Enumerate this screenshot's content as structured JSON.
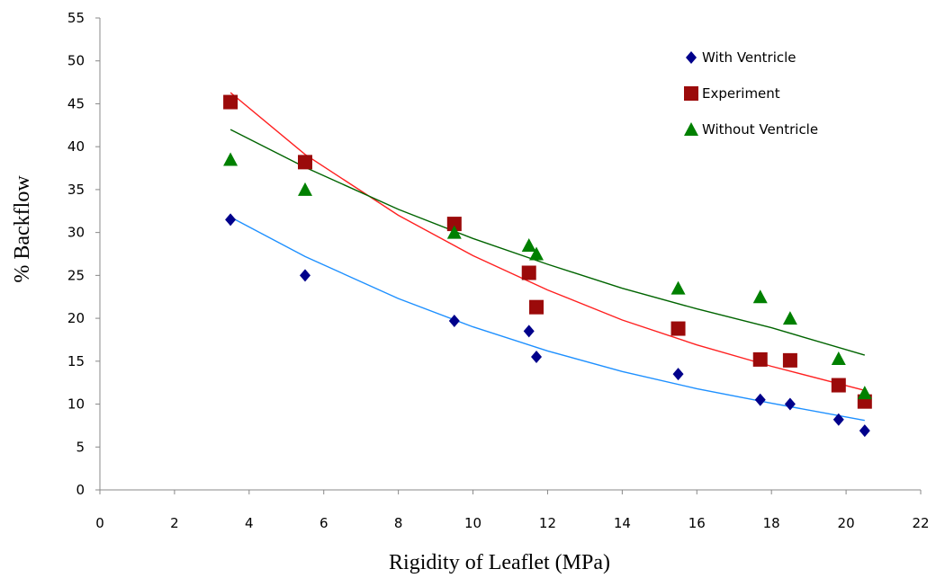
{
  "chart_data": {
    "type": "scatter",
    "title": "",
    "xlabel": "Rigidity of Leaflet (MPa)",
    "ylabel": "% Backflow",
    "xlim": [
      0,
      22
    ],
    "ylim": [
      0,
      55
    ],
    "x_ticks": [
      "0",
      "2",
      "4",
      "6",
      "8",
      "10",
      "12",
      "14",
      "16",
      "18",
      "20",
      "22"
    ],
    "y_ticks": [
      "0",
      "5",
      "10",
      "15",
      "20",
      "25",
      "30",
      "35",
      "40",
      "45",
      "50",
      "55"
    ],
    "grid": false,
    "legend_position": "top-right",
    "series": [
      {
        "name": "With Ventricle",
        "marker": "diamond",
        "color": "#00008B",
        "trend_color": "#1E90FF",
        "points": [
          [
            3.5,
            31.5
          ],
          [
            5.5,
            25.0
          ],
          [
            9.5,
            19.7
          ],
          [
            11.5,
            18.5
          ],
          [
            11.7,
            15.5
          ],
          [
            15.5,
            13.5
          ],
          [
            17.7,
            10.5
          ],
          [
            18.5,
            10.0
          ],
          [
            19.8,
            8.2
          ],
          [
            20.5,
            6.9
          ]
        ],
        "trend": [
          [
            3.5,
            31.8
          ],
          [
            5.5,
            27.2
          ],
          [
            8.0,
            22.3
          ],
          [
            10.0,
            19.0
          ],
          [
            12.0,
            16.2
          ],
          [
            14.0,
            13.8
          ],
          [
            16.0,
            11.8
          ],
          [
            18.0,
            10.1
          ],
          [
            20.5,
            8.1
          ]
        ]
      },
      {
        "name": "Experiment",
        "marker": "square",
        "color": "#9B0A0A",
        "trend_color": "#FF2020",
        "points": [
          [
            3.5,
            45.2
          ],
          [
            5.5,
            38.2
          ],
          [
            9.5,
            31.0
          ],
          [
            11.5,
            25.3
          ],
          [
            11.7,
            21.3
          ],
          [
            15.5,
            18.8
          ],
          [
            17.7,
            15.2
          ],
          [
            18.5,
            15.1
          ],
          [
            19.8,
            12.2
          ],
          [
            20.5,
            10.3
          ]
        ],
        "trend": [
          [
            3.5,
            46.3
          ],
          [
            5.5,
            39.1
          ],
          [
            8.0,
            32.0
          ],
          [
            10.0,
            27.3
          ],
          [
            12.0,
            23.3
          ],
          [
            14.0,
            19.8
          ],
          [
            16.0,
            16.9
          ],
          [
            18.0,
            14.4
          ],
          [
            20.5,
            11.6
          ]
        ]
      },
      {
        "name": "Without Ventricle",
        "marker": "triangle",
        "color": "#008000",
        "trend_color": "#006400",
        "points": [
          [
            3.5,
            38.5
          ],
          [
            5.5,
            35.0
          ],
          [
            9.5,
            30.0
          ],
          [
            11.5,
            28.5
          ],
          [
            11.7,
            27.5
          ],
          [
            15.5,
            23.5
          ],
          [
            17.7,
            22.5
          ],
          [
            18.5,
            20.0
          ],
          [
            19.8,
            15.3
          ],
          [
            20.5,
            11.3
          ]
        ],
        "trend": [
          [
            3.5,
            42.0
          ],
          [
            5.5,
            37.6
          ],
          [
            8.0,
            32.7
          ],
          [
            10.0,
            29.3
          ],
          [
            12.0,
            26.3
          ],
          [
            14.0,
            23.5
          ],
          [
            16.0,
            21.1
          ],
          [
            18.0,
            18.9
          ],
          [
            20.5,
            15.7
          ]
        ]
      }
    ]
  }
}
